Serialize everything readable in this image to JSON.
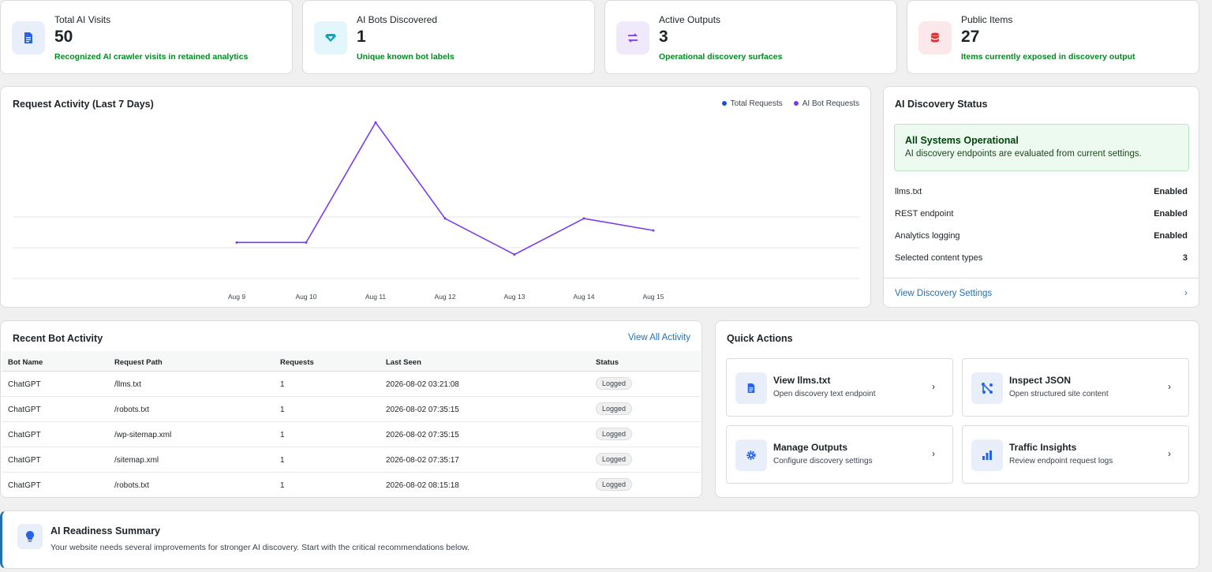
{
  "stats": [
    {
      "label": "Total AI Visits",
      "value": "50",
      "sub": "Recognized AI crawler visits in retained analytics",
      "icon": "document-icon",
      "bg": "#e8effb",
      "fg": "#2271b1"
    },
    {
      "label": "AI Bots Discovered",
      "value": "1",
      "sub": "Unique known bot labels",
      "icon": "diamond-icon",
      "bg": "#e2f6fb",
      "fg": "#0aa3c8"
    },
    {
      "label": "Active Outputs",
      "value": "3",
      "sub": "Operational discovery surfaces",
      "icon": "repeat-icon",
      "bg": "#f0e8fb",
      "fg": "#7c3aed"
    },
    {
      "label": "Public Items",
      "value": "27",
      "sub": "Items currently exposed in discovery output",
      "icon": "database-icon",
      "bg": "#fce8ea",
      "fg": "#d63638"
    }
  ],
  "chart": {
    "title": "Request Activity (Last 7 Days)",
    "legend_total": "Total Requests",
    "legend_bot": "AI Bot Requests",
    "color_total": "#1d4ed8",
    "color_bot": "#7c3aed"
  },
  "chart_data": {
    "type": "line",
    "categories": [
      "Aug 9",
      "Aug 10",
      "Aug 11",
      "Aug 12",
      "Aug 13",
      "Aug 14",
      "Aug 15"
    ],
    "series": [
      {
        "name": "AI Bot Requests",
        "values": [
          3,
          3,
          13,
          5,
          2,
          5,
          4
        ]
      }
    ],
    "ylim": [
      0,
      14
    ],
    "grid": true
  },
  "status": {
    "title": "AI Discovery Status",
    "ok_title": "All Systems Operational",
    "ok_desc": "AI discovery endpoints are evaluated from current settings.",
    "rows": [
      {
        "label": "llms.txt",
        "value": "Enabled"
      },
      {
        "label": "REST endpoint",
        "value": "Enabled"
      },
      {
        "label": "Analytics logging",
        "value": "Enabled"
      },
      {
        "label": "Selected content types",
        "value": "3"
      }
    ],
    "link": "View Discovery Settings",
    "chevron": "›"
  },
  "activity": {
    "title": "Recent Bot Activity",
    "view_all": "View All Activity",
    "columns": [
      "Bot Name",
      "Request Path",
      "Requests",
      "Last Seen",
      "Status"
    ],
    "rows": [
      [
        "ChatGPT",
        "/llms.txt",
        "1",
        "2026-08-02 03:21:08",
        "Logged"
      ],
      [
        "ChatGPT",
        "/robots.txt",
        "1",
        "2026-08-02 07:35:15",
        "Logged"
      ],
      [
        "ChatGPT",
        "/wp-sitemap.xml",
        "1",
        "2026-08-02 07:35:15",
        "Logged"
      ],
      [
        "ChatGPT",
        "/sitemap.xml",
        "1",
        "2026-08-02 07:35:17",
        "Logged"
      ],
      [
        "ChatGPT",
        "/robots.txt",
        "1",
        "2026-08-02 08:15:18",
        "Logged"
      ]
    ]
  },
  "quick": {
    "title": "Quick Actions",
    "items": [
      {
        "title": "View llms.txt",
        "desc": "Open discovery text endpoint",
        "icon": "document-icon"
      },
      {
        "title": "Inspect JSON",
        "desc": "Open structured site content",
        "icon": "graph-icon"
      },
      {
        "title": "Manage Outputs",
        "desc": "Configure discovery settings",
        "icon": "gear-icon"
      },
      {
        "title": "Traffic Insights",
        "desc": "Review endpoint request logs",
        "icon": "bar-chart-icon"
      }
    ],
    "chevron": "›"
  },
  "summary": {
    "title": "AI Readiness Summary",
    "desc": "Your website needs several improvements for stronger AI discovery. Start with the critical recommendations below.",
    "icon": "lightbulb-icon"
  }
}
